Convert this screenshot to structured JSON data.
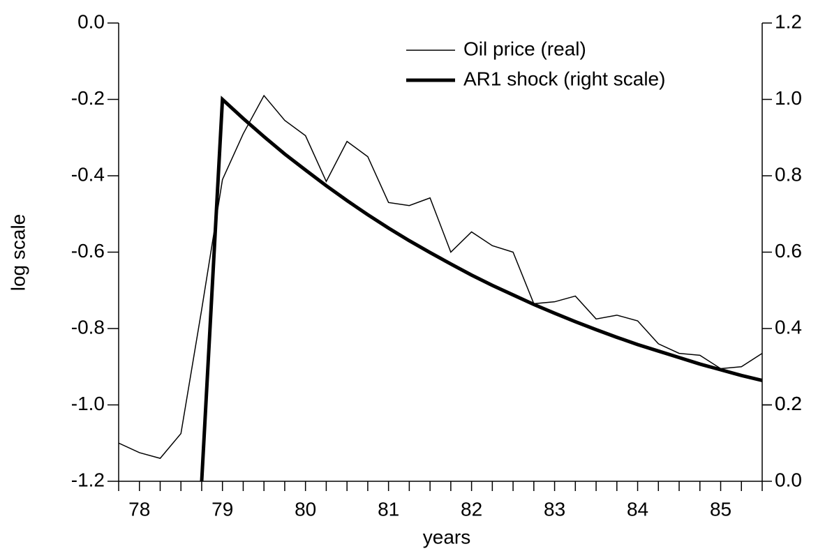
{
  "chart_data": {
    "type": "line",
    "xlabel": "years",
    "ylabel": "log scale",
    "x": [
      77.75,
      78.0,
      78.25,
      78.5,
      78.75,
      79.0,
      79.25,
      79.5,
      79.75,
      80.0,
      80.25,
      80.5,
      80.75,
      81.0,
      81.25,
      81.5,
      81.75,
      82.0,
      82.25,
      82.5,
      82.75,
      83.0,
      83.25,
      83.5,
      83.75,
      84.0,
      84.25,
      84.5,
      84.75,
      85.0,
      85.25,
      85.5
    ],
    "series": [
      {
        "name": "Oil price (real)",
        "color": "#000000",
        "width": 1.5,
        "values": [
          -1.1,
          -1.125,
          -1.14,
          -1.075,
          -0.75,
          -0.41,
          -0.29,
          -0.19,
          -0.255,
          -0.295,
          -0.415,
          -0.31,
          -0.35,
          -0.47,
          -0.478,
          -0.458,
          -0.6,
          -0.547,
          -0.583,
          -0.6,
          -0.735,
          -0.73,
          -0.715,
          -0.775,
          -0.765,
          -0.78,
          -0.84,
          -0.865,
          -0.87,
          -0.905,
          -0.9,
          -0.865
        ]
      },
      {
        "name": "AR1 shock (right scale)",
        "color": "#000000",
        "width": 5,
        "axis": "y2",
        "values": [
          null,
          null,
          null,
          null,
          0,
          1.0,
          0.95,
          0.9025,
          0.857,
          0.815,
          0.774,
          0.735,
          0.698,
          0.663,
          0.63,
          0.599,
          0.569,
          0.54,
          0.513,
          0.488,
          0.463,
          0.44,
          0.418,
          0.397,
          0.377,
          0.358,
          0.341,
          0.324,
          0.307,
          0.292,
          0.277,
          0.264
        ]
      }
    ],
    "xlim": [
      77.75,
      85.5
    ],
    "xticks": [
      78,
      79,
      80,
      81,
      82,
      83,
      84,
      85
    ],
    "ylim": [
      -1.2,
      0
    ],
    "yticks": [
      {
        "value": -1.2,
        "label": "-1.2"
      },
      {
        "value": -1.0,
        "label": "-1.0"
      },
      {
        "value": -0.8,
        "label": "-0.8"
      },
      {
        "value": -0.6,
        "label": "-0.6"
      },
      {
        "value": -0.4,
        "label": "-0.4"
      },
      {
        "value": -0.2,
        "label": "-0.2"
      },
      {
        "value": 0,
        "label": "0.0"
      }
    ],
    "y2lim": [
      0,
      1.2
    ],
    "y2ticks": [
      {
        "value": 0,
        "label": "0.0"
      },
      0.2,
      0.4,
      0.6,
      0.8,
      {
        "value": 1.0,
        "label": "1.0"
      },
      0.2,
      1.2
    ],
    "legend": "upper right"
  }
}
